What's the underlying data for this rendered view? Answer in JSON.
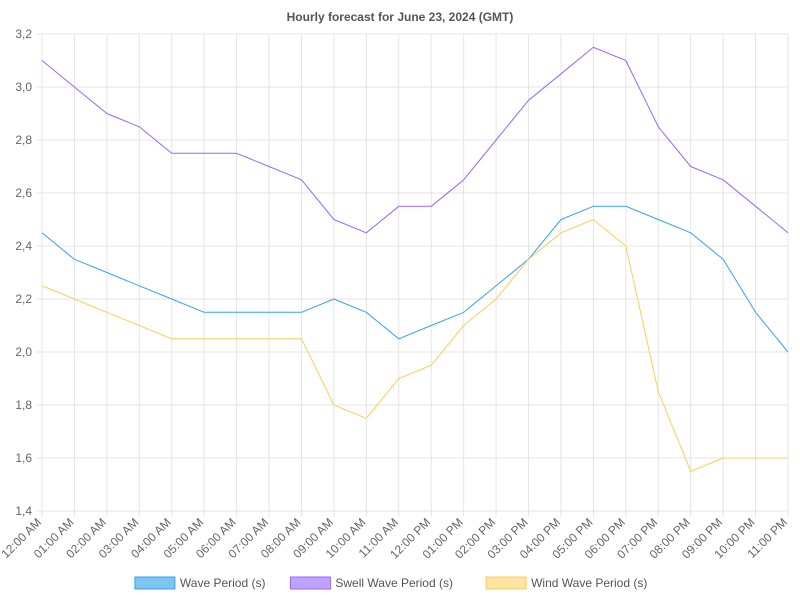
{
  "chart_data": {
    "type": "line",
    "title": "Hourly forecast for June 23, 2024 (GMT)",
    "xlabel": "",
    "ylabel": "",
    "categories": [
      "12:00 AM",
      "01:00 AM",
      "02:00 AM",
      "03:00 AM",
      "04:00 AM",
      "05:00 AM",
      "06:00 AM",
      "07:00 AM",
      "08:00 AM",
      "09:00 AM",
      "10:00 AM",
      "11:00 AM",
      "12:00 PM",
      "01:00 PM",
      "02:00 PM",
      "03:00 PM",
      "04:00 PM",
      "05:00 PM",
      "06:00 PM",
      "07:00 PM",
      "08:00 PM",
      "09:00 PM",
      "10:00 PM",
      "11:00 PM"
    ],
    "ylim": [
      1.4,
      3.2
    ],
    "yticks": [
      "1,4",
      "1,6",
      "1,8",
      "2,0",
      "2,2",
      "2,4",
      "2,6",
      "2,8",
      "3,0",
      "3,2"
    ],
    "grid": true,
    "legend_position": "bottom",
    "series": [
      {
        "name": "Wave Period (s)",
        "color": "#36a2eb",
        "fill": "#80c4f2",
        "values": [
          2.45,
          2.35,
          2.3,
          2.25,
          2.2,
          2.15,
          2.15,
          2.15,
          2.15,
          2.2,
          2.15,
          2.05,
          2.1,
          2.15,
          2.25,
          2.35,
          2.5,
          2.55,
          2.55,
          2.5,
          2.45,
          2.35,
          2.15,
          2.0
        ]
      },
      {
        "name": "Swell Wave Period (s)",
        "color": "#9966ff",
        "fill": "#c0a3ff",
        "values": [
          3.1,
          3.0,
          2.9,
          2.85,
          2.75,
          2.75,
          2.75,
          2.7,
          2.65,
          2.5,
          2.45,
          2.55,
          2.55,
          2.65,
          2.8,
          2.95,
          3.05,
          3.15,
          3.1,
          2.85,
          2.7,
          2.65,
          2.55,
          2.45
        ]
      },
      {
        "name": "Wind Wave Period (s)",
        "color": "#ffcd56",
        "fill": "#ffe3a3",
        "values": [
          2.25,
          2.2,
          2.15,
          2.1,
          2.05,
          2.05,
          2.05,
          2.05,
          2.05,
          1.8,
          1.75,
          1.9,
          1.95,
          2.1,
          2.2,
          2.35,
          2.45,
          2.5,
          2.4,
          1.85,
          1.55,
          1.6,
          1.6,
          1.6
        ]
      }
    ]
  }
}
